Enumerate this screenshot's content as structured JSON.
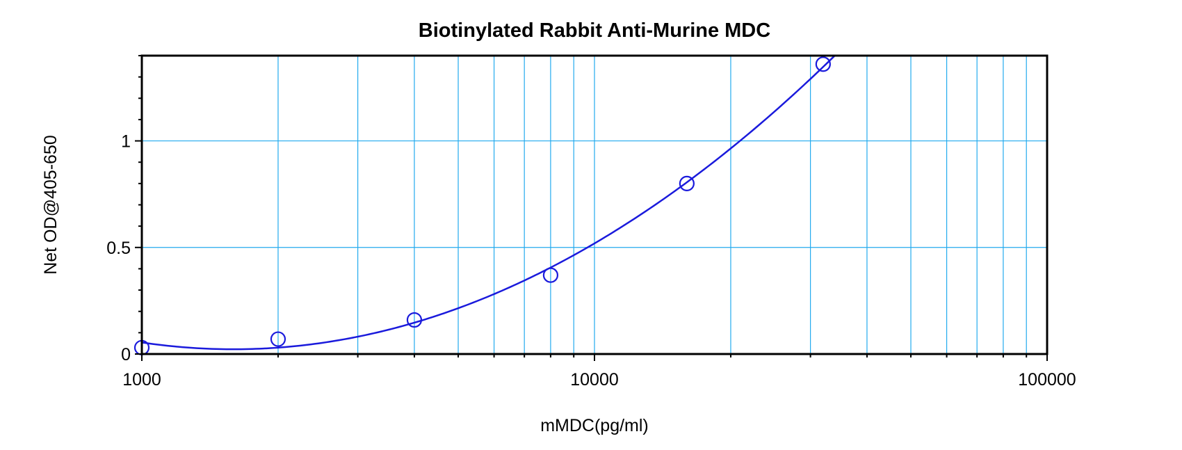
{
  "chart_data": {
    "type": "scatter",
    "title": "Biotinylated Rabbit Anti-Murine MDC",
    "xlabel": "mMDC(pg/ml)",
    "ylabel": "Net OD@405-650",
    "x_scale": "log",
    "xlim": [
      1000,
      100000
    ],
    "ylim": [
      0,
      1.4
    ],
    "x_ticks": [
      {
        "value": 1000,
        "label": "1000"
      },
      {
        "value": 10000,
        "label": "10000"
      },
      {
        "value": 100000,
        "label": "100000"
      }
    ],
    "y_ticks": [
      {
        "value": 0,
        "label": "0"
      },
      {
        "value": 0.5,
        "label": "0.5"
      },
      {
        "value": 1,
        "label": "1"
      }
    ],
    "grid": true,
    "legend": "none",
    "series": [
      {
        "x": [
          1000,
          2000,
          4000,
          8000,
          16000,
          32000
        ],
        "y": [
          0.03,
          0.07,
          0.16,
          0.37,
          0.8,
          1.36
        ],
        "marker": "open-circle",
        "fit_curve": true
      }
    ],
    "colors": {
      "series": "#1a1adc",
      "grid": "#22aaee",
      "axes": "#000000"
    }
  }
}
